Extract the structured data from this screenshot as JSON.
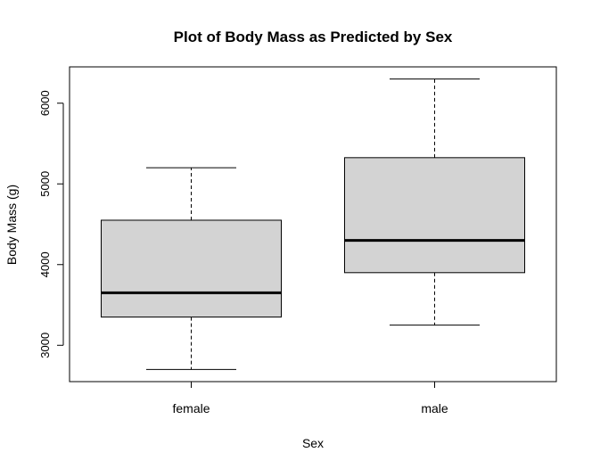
{
  "chart_data": {
    "type": "boxplot",
    "title": "Plot of Body Mass as Predicted by Sex",
    "xlabel": "Sex",
    "ylabel": "Body Mass (g)",
    "ylim": [
      2550,
      6450
    ],
    "yticks": [
      3000,
      4000,
      5000,
      6000
    ],
    "ytick_labels": [
      "3000",
      "4000",
      "5000",
      "6000"
    ],
    "categories": [
      "female",
      "male"
    ],
    "boxes": [
      {
        "label": "female",
        "min": 2700,
        "q1": 3350,
        "median": 3650,
        "q3": 4550,
        "max": 5200
      },
      {
        "label": "male",
        "min": 3250,
        "q1": 3900,
        "median": 4300,
        "q3": 5325,
        "max": 6300
      }
    ],
    "colors": {
      "box_fill": "#d3d3d3",
      "stroke": "#000000"
    },
    "grid": false
  }
}
